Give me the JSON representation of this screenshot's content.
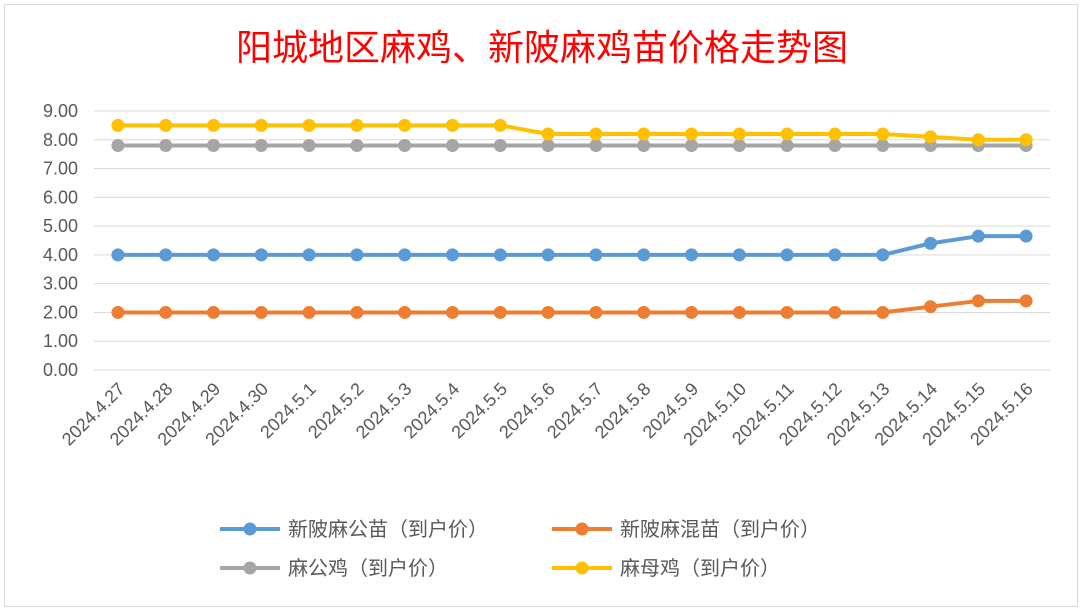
{
  "chart_data": {
    "type": "line",
    "title": "阳城地区麻鸡、新陂麻鸡苗价格走势图",
    "categories": [
      "2024.4.27",
      "2024.4.28",
      "2024.4.29",
      "2024.4.30",
      "2024.5.1",
      "2024.5.2",
      "2024.5.3",
      "2024.5.4",
      "2024.5.5",
      "2024.5.6",
      "2024.5.7",
      "2024.5.8",
      "2024.5.9",
      "2024.5.10",
      "2024.5.11",
      "2024.5.12",
      "2024.5.13",
      "2024.5.14",
      "2024.5.15",
      "2024.5.16"
    ],
    "ylim": [
      0,
      9
    ],
    "yticks": [
      "0.00",
      "1.00",
      "2.00",
      "3.00",
      "4.00",
      "5.00",
      "6.00",
      "7.00",
      "8.00",
      "9.00"
    ],
    "grid": true,
    "legend_position": "bottom",
    "series": [
      {
        "name": "新陂麻公苗（到户价）",
        "color": "#5b9bd5",
        "values": [
          4,
          4,
          4,
          4,
          4,
          4,
          4,
          4,
          4,
          4,
          4,
          4,
          4,
          4,
          4,
          4,
          4,
          4.4,
          4.65,
          4.65
        ]
      },
      {
        "name": "新陂麻混苗（到户价）",
        "color": "#ed7d31",
        "values": [
          2,
          2,
          2,
          2,
          2,
          2,
          2,
          2,
          2,
          2,
          2,
          2,
          2,
          2,
          2,
          2,
          2,
          2.2,
          2.4,
          2.4
        ]
      },
      {
        "name": "麻公鸡（到户价）",
        "color": "#a5a5a5",
        "values": [
          7.8,
          7.8,
          7.8,
          7.8,
          7.8,
          7.8,
          7.8,
          7.8,
          7.8,
          7.8,
          7.8,
          7.8,
          7.8,
          7.8,
          7.8,
          7.8,
          7.8,
          7.8,
          7.8,
          7.8
        ]
      },
      {
        "name": "麻母鸡（到户价）",
        "color": "#ffc000",
        "values": [
          8.5,
          8.5,
          8.5,
          8.5,
          8.5,
          8.5,
          8.5,
          8.5,
          8.5,
          8.2,
          8.2,
          8.2,
          8.2,
          8.2,
          8.2,
          8.2,
          8.2,
          8.1,
          8.0,
          8.0
        ]
      }
    ]
  }
}
